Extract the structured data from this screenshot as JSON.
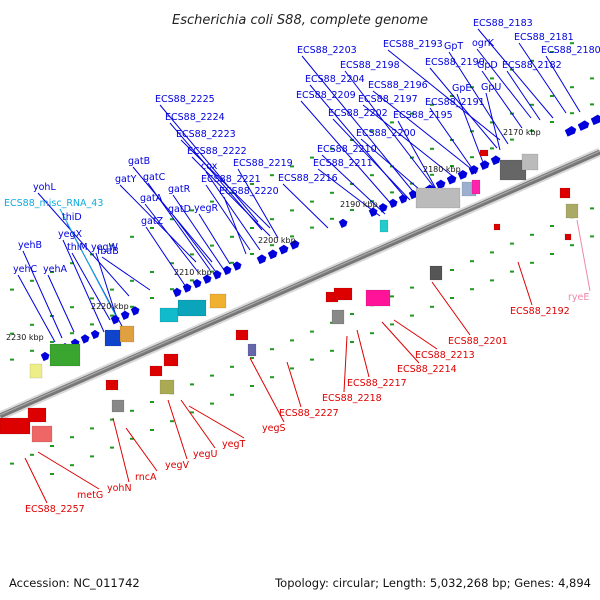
{
  "title": "Escherichia coli S88, complete genome",
  "footer": {
    "accession": "Accession: NC_011742",
    "topology": "Topology: circular; Length: 5,032,268 bp; Genes: 4,894"
  },
  "colors": {
    "forward": "#0000dd",
    "reverse": "#dd0000",
    "misc_rna": "#11aadd",
    "rye": "#ee88aa",
    "backbone": "#777777",
    "dots": "#229922"
  },
  "ticks": [
    "2230 kbp",
    "2220 kbp",
    "2210 kbp",
    "2200 kbp",
    "2190 kbp",
    "2180 kbp",
    "2170 kbp"
  ],
  "forward_labels": [
    "ECS88_2183",
    "ECS88_2181",
    "ECS88_2180",
    "ogrK",
    "GpT",
    "ECS88_2193",
    "ECS88_2190",
    "GpD",
    "ECS88_2182",
    "ECS88_2203",
    "ECS88_2198",
    "ECS88_2204",
    "ECS88_2196",
    "GpE",
    "GpU",
    "ECS88_2209",
    "ECS88_2197",
    "ECS88_2191",
    "ECS88_2202",
    "ECS88_2195",
    "ECS88_2225",
    "ECS88_2224",
    "ECS88_2200",
    "ECS88_2223",
    "ECS88_2210",
    "ECS88_2222",
    "ECS88_2211",
    "ECS88_2219",
    "cox",
    "gatB",
    "ECS88_2221",
    "ECS88_2216",
    "gatY",
    "gatC",
    "ECS88_2220",
    "gatR",
    "yohL",
    "gatA",
    "thiD",
    "gatD",
    "yegR",
    "yegX",
    "gatZ",
    "thiM",
    "yegW",
    "yehB",
    "fbaB",
    "yehC",
    "yehA"
  ],
  "misc_labels": [
    "ECS88_misc_RNA_43"
  ],
  "reverse_labels": [
    "ECS88_2192",
    "ryeE",
    "ECS88_2201",
    "ECS88_2213",
    "ECS88_2214",
    "ECS88_2217",
    "ECS88_2218",
    "ECS88_2227",
    "yegS",
    "yegT",
    "yegU",
    "yegV",
    "rncA",
    "yohN",
    "metG",
    "ECS88_2257"
  ]
}
